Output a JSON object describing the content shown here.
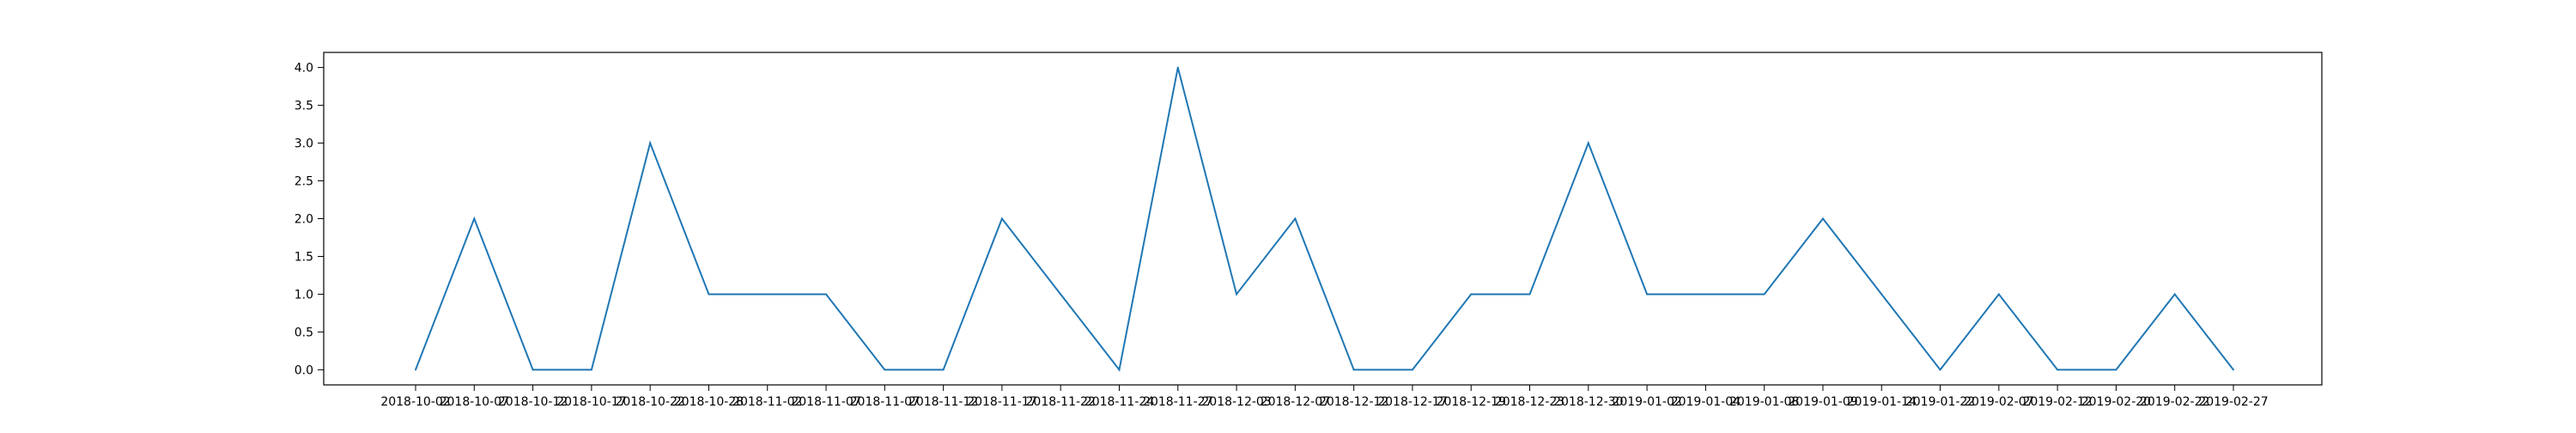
{
  "chart_data": {
    "type": "line",
    "title": "",
    "xlabel": "",
    "ylabel": "",
    "x": [
      "2018-10-02",
      "2018-10-07",
      "2018-10-12",
      "2018-10-17",
      "2018-10-22",
      "2018-10-28",
      "2018-11-02",
      "2018-11-07",
      "2018-11-07",
      "2018-11-12",
      "2018-11-17",
      "2018-11-22",
      "2018-11-24",
      "2018-11-27",
      "2018-12-03",
      "2018-12-07",
      "2018-12-12",
      "2018-12-17",
      "2018-12-19",
      "2018-12-23",
      "2018-12-30",
      "2019-01-02",
      "2019-01-04",
      "2019-01-08",
      "2019-01-09",
      "2019-01-14",
      "2019-01-22",
      "2019-02-07",
      "2019-02-12",
      "2019-02-20",
      "2019-02-22",
      "2019-02-27"
    ],
    "series": [
      {
        "color": "#1f77b4",
        "values": [
          0,
          2,
          0,
          0,
          3,
          1,
          1,
          1,
          0,
          0,
          2,
          1,
          0,
          4,
          1,
          2,
          0,
          0,
          1,
          1,
          3,
          1,
          1,
          1,
          2,
          1,
          0,
          1,
          0,
          0,
          1,
          0
        ]
      }
    ],
    "ylim": [
      -0.2,
      4.2
    ],
    "yticks": [
      0.0,
      0.5,
      1.0,
      1.5,
      2.0,
      2.5,
      3.0,
      3.5,
      4.0
    ],
    "ytick_labels": [
      "0.0",
      "0.5",
      "1.0",
      "1.5",
      "2.0",
      "2.5",
      "3.0",
      "3.5",
      "4.0"
    ],
    "grid": false,
    "legend": "none"
  }
}
